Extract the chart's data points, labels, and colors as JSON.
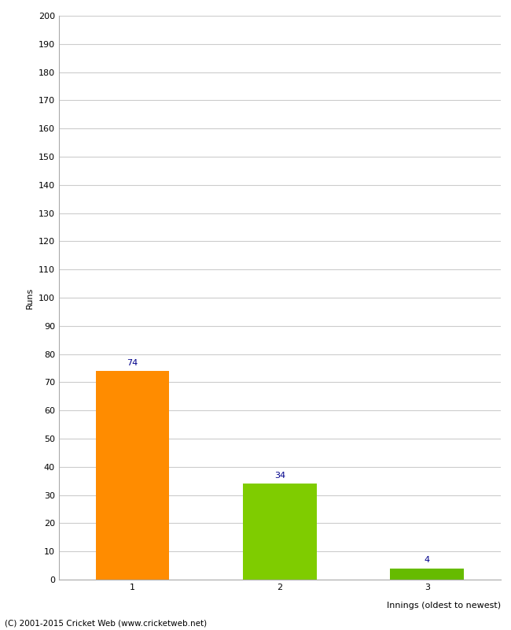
{
  "categories": [
    "1",
    "2",
    "3"
  ],
  "values": [
    74,
    34,
    4
  ],
  "bar_colors": [
    "#FF8C00",
    "#7FCC00",
    "#66BB00"
  ],
  "xlabel": "Innings (oldest to newest)",
  "ylabel": "Runs",
  "ylim": [
    0,
    200
  ],
  "yticks": [
    0,
    10,
    20,
    30,
    40,
    50,
    60,
    70,
    80,
    90,
    100,
    110,
    120,
    130,
    140,
    150,
    160,
    170,
    180,
    190,
    200
  ],
  "annotation_color": "#00008B",
  "annotation_fontsize": 8,
  "footer": "(C) 2001-2015 Cricket Web (www.cricketweb.net)",
  "background_color": "#ffffff",
  "grid_color": "#cccccc"
}
